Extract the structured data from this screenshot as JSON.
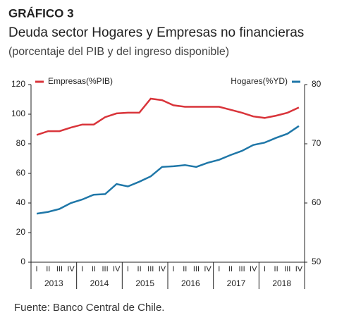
{
  "chart_data": {
    "type": "line",
    "label": "GRÁFICO 3",
    "title": "Deuda sector Hogares y Empresas no financieras",
    "subtitle": "(porcentaje del PIB y del ingreso disponible)",
    "source": "Fuente: Banco Central de Chile.",
    "categories": [
      "I",
      "II",
      "III",
      "IV",
      "I",
      "II",
      "III",
      "IV",
      "I",
      "II",
      "III",
      "IV",
      "I",
      "II",
      "III",
      "IV",
      "I",
      "II",
      "III",
      "IV",
      "I",
      "II",
      "III",
      "IV"
    ],
    "years": [
      "2013",
      "2014",
      "2015",
      "2016",
      "2017",
      "2018"
    ],
    "series": [
      {
        "name": "Empresas(%PIB)",
        "color": "#d9343a",
        "values": [
          86,
          88.5,
          88.5,
          91,
          93,
          93,
          98,
          100.5,
          101,
          101,
          110.5,
          109.5,
          106,
          105,
          105,
          105,
          105,
          103,
          101,
          98.5,
          97.5,
          99,
          101,
          104.5
        ]
      },
      {
        "name": "Hogares(%YD)",
        "color": "#1f77a8",
        "axis": "y2",
        "values": [
          58.2,
          58.5,
          59,
          60,
          60.6,
          61.4,
          61.5,
          63.2,
          62.8,
          63.6,
          64.5,
          66.1,
          66.2,
          66.4,
          66.1,
          66.8,
          67.3,
          68.1,
          68.8,
          69.8,
          70.2,
          71.0,
          71.7,
          73.0
        ]
      }
    ],
    "ylim": [
      0,
      120
    ],
    "yticks": [
      0,
      20,
      40,
      60,
      80,
      100,
      120
    ],
    "y2lim": [
      50,
      80
    ],
    "y2ticks": [
      50,
      60,
      70,
      80
    ]
  }
}
